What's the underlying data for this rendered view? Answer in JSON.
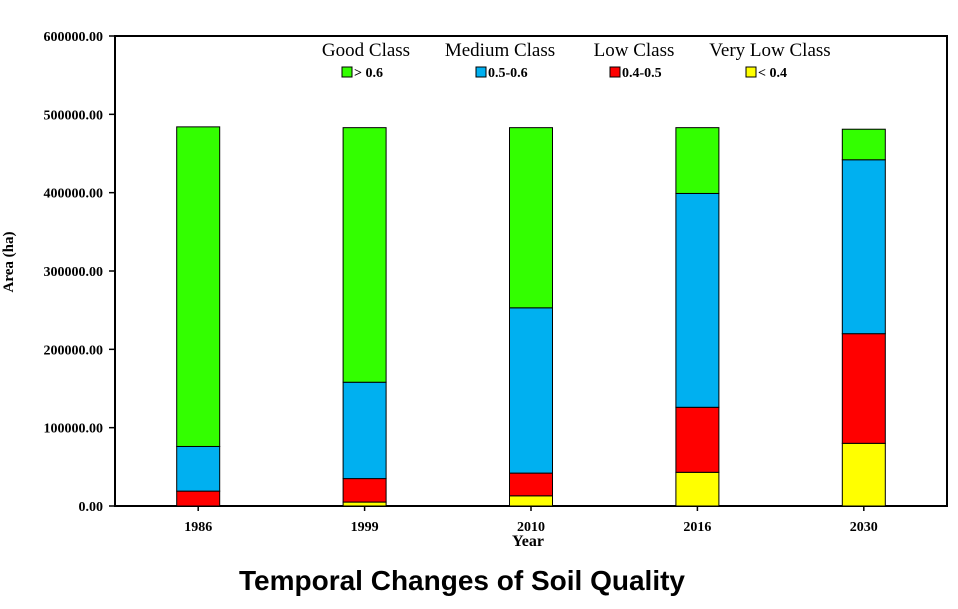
{
  "chart_data": {
    "type": "bar",
    "stacked": true,
    "categories": [
      "1986",
      "1999",
      "2010",
      "2016",
      "2030"
    ],
    "series": [
      {
        "name": "Very Low Class",
        "legend_value": "< 0.4",
        "color": "#ffff00",
        "values": [
          0,
          5000,
          13000,
          43000,
          80000
        ]
      },
      {
        "name": "Low Class",
        "legend_value": "0.4-0.5",
        "color": "#ff0000",
        "values": [
          19000,
          30000,
          29000,
          83000,
          140000
        ]
      },
      {
        "name": "Medium Class",
        "legend_value": "0.5-0.6",
        "color": "#00b0f0",
        "values": [
          57000,
          123000,
          211000,
          273000,
          222000
        ]
      },
      {
        "name": "Good Class",
        "legend_value": "> 0.6",
        "color": "#33ff00",
        "values": [
          408000,
          325000,
          230000,
          84000,
          39000
        ]
      }
    ],
    "title": "Temporal Changes of Soil Quality",
    "xlabel": "Year",
    "ylabel": "Area (ha)",
    "ylim": [
      0,
      600000
    ],
    "yticks": [
      "0.00",
      "100000.00",
      "200000.00",
      "300000.00",
      "400000.00",
      "500000.00",
      "600000.00"
    ],
    "grid": false,
    "legend_position": "top-inside",
    "legend_order": [
      "Good Class",
      "Medium Class",
      "Low Class",
      "Very Low Class"
    ]
  }
}
